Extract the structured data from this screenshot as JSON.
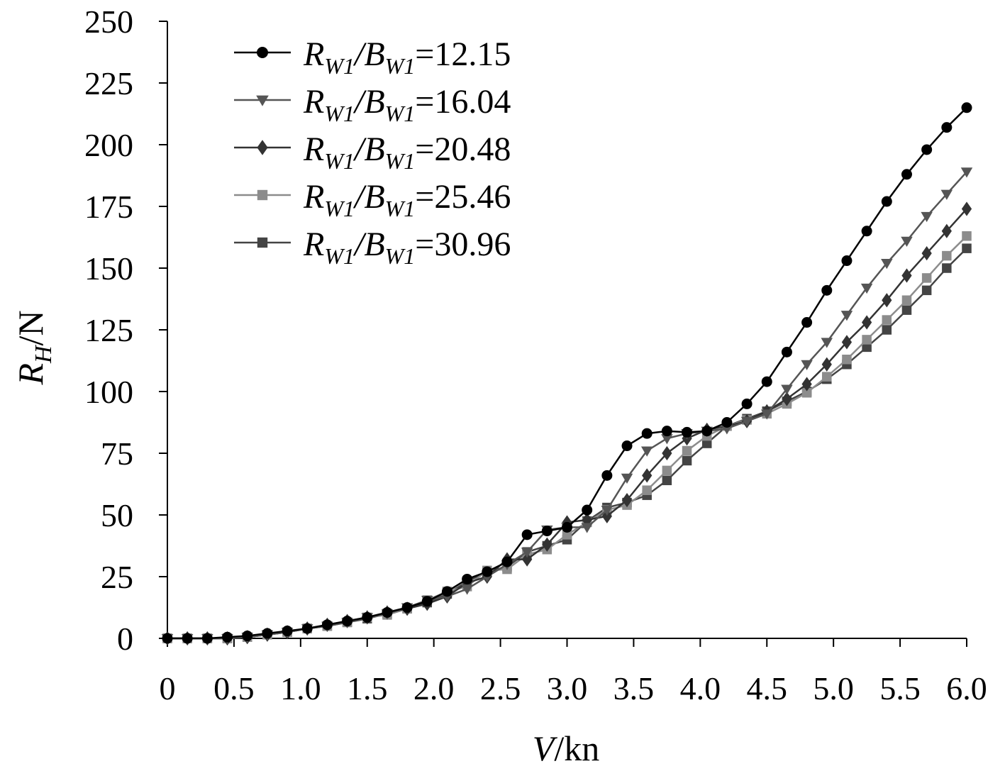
{
  "chart_data": {
    "type": "line",
    "title": "",
    "xlabel": {
      "var": "V",
      "unit": "/kn"
    },
    "ylabel": {
      "var": "R",
      "sub": "H",
      "unit": "/N"
    },
    "xlim": [
      0,
      6
    ],
    "ylim": [
      0,
      250
    ],
    "xticks": [
      "0",
      "0.5",
      "1.0",
      "1.5",
      "2.0",
      "2.5",
      "3.0",
      "3.5",
      "4.0",
      "4.5",
      "5.0",
      "5.5",
      "6.0"
    ],
    "yticks": [
      "0",
      "25",
      "50",
      "75",
      "100",
      "125",
      "150",
      "175",
      "200",
      "225",
      "250"
    ],
    "grid": false,
    "legend_position": "top-left",
    "x": [
      0,
      0.15,
      0.3,
      0.45,
      0.6,
      0.75,
      0.9,
      1.05,
      1.2,
      1.35,
      1.5,
      1.65,
      1.8,
      1.95,
      2.1,
      2.25,
      2.4,
      2.55,
      2.7,
      2.85,
      3.0,
      3.15,
      3.3,
      3.45,
      3.6,
      3.75,
      3.9,
      4.05,
      4.2,
      4.35,
      4.5,
      4.65,
      4.8,
      4.95,
      5.1,
      5.25,
      5.4,
      5.55,
      5.7,
      5.85,
      6.0
    ],
    "series": [
      {
        "name": {
          "pre": "R",
          "sub1": "W1",
          "mid": "/B",
          "sub2": "W1",
          "post": "=12.15"
        },
        "marker": "circle",
        "color": "#000000",
        "values": [
          0,
          0,
          0,
          0.5,
          1,
          2,
          3,
          4,
          5.5,
          7,
          8.5,
          10.5,
          12.5,
          15,
          19,
          24,
          27,
          31,
          42,
          43.5,
          45,
          52,
          66,
          78,
          83,
          84,
          83.5,
          84,
          87.5,
          95,
          104,
          116,
          128,
          141,
          153,
          165,
          177,
          188,
          198,
          207,
          215
        ]
      },
      {
        "name": {
          "pre": "R",
          "sub1": "W1",
          "mid": "/B",
          "sub2": "W1",
          "post": "=16.04"
        },
        "marker": "triangle-down",
        "color": "#555555",
        "values": [
          0,
          0,
          0,
          0,
          0.5,
          1.5,
          2.5,
          4,
          5,
          6.5,
          8.5,
          10,
          12.5,
          15.5,
          17,
          20,
          25,
          30,
          35,
          44,
          45,
          45,
          52,
          65,
          76,
          81,
          83,
          84,
          85,
          88,
          91,
          101,
          111,
          120,
          131,
          142,
          152,
          161,
          171,
          180,
          189
        ]
      },
      {
        "name": {
          "pre": "R",
          "sub1": "W1",
          "mid": "/B",
          "sub2": "W1",
          "post": "=20.48"
        },
        "marker": "diamond",
        "color": "#333333",
        "values": [
          0,
          0,
          0,
          0,
          0.5,
          1.5,
          2.5,
          4,
          5.5,
          7,
          8.5,
          10.5,
          12,
          14,
          17,
          22.5,
          25,
          32,
          32,
          38,
          47,
          48,
          49.5,
          56,
          66,
          75,
          81,
          84.5,
          86,
          88,
          92,
          97,
          103,
          111,
          120,
          128,
          137,
          147,
          156,
          165,
          174
        ]
      },
      {
        "name": {
          "pre": "R",
          "sub1": "W1",
          "mid": "/B",
          "sub2": "W1",
          "post": "=25.46"
        },
        "marker": "square",
        "color": "#8c8c8c",
        "values": [
          0,
          0,
          0,
          0,
          0.5,
          1.5,
          2.5,
          4,
          5,
          6.5,
          8.5,
          9.5,
          12,
          15.5,
          19,
          21,
          27.5,
          28,
          34,
          36,
          42,
          47,
          52,
          54,
          60,
          68,
          76,
          82,
          86,
          88.5,
          91,
          95,
          99.5,
          106,
          113,
          121,
          129,
          137,
          146,
          155,
          163
        ]
      },
      {
        "name": {
          "pre": "R",
          "sub1": "W1",
          "mid": "/B",
          "sub2": "W1",
          "post": "=30.96"
        },
        "marker": "square",
        "color": "#444444",
        "values": [
          0,
          0,
          0,
          0,
          0.5,
          1.5,
          2.5,
          4,
          5,
          6.5,
          8,
          10,
          12,
          14.5,
          18,
          23,
          27,
          29,
          35,
          37.5,
          40,
          47.5,
          53,
          55,
          58,
          64,
          72,
          79,
          86,
          89,
          92,
          96,
          100,
          105,
          111,
          118,
          125,
          133,
          141,
          150,
          158
        ]
      }
    ]
  }
}
